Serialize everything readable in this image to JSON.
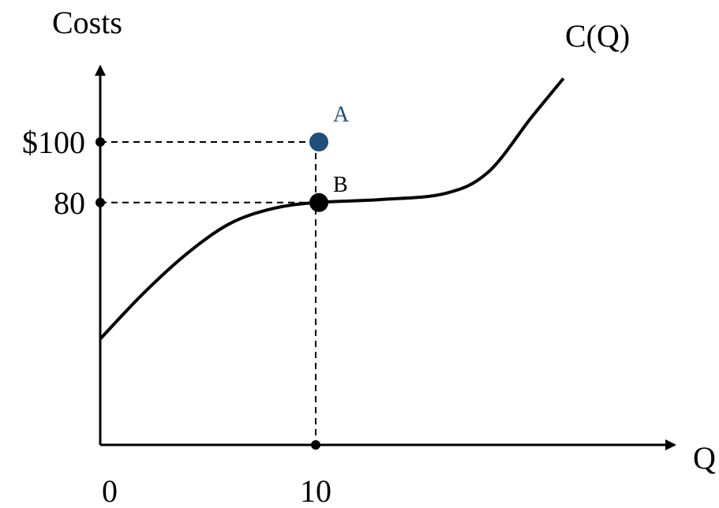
{
  "chart_data": {
    "type": "line",
    "ylabel": "Costs",
    "xlabel": "Q",
    "curve_label": "C(Q)",
    "x_ticks": [
      {
        "value": 0,
        "label": "0"
      },
      {
        "value": 10,
        "label": "10"
      }
    ],
    "y_ticks": [
      {
        "value": 100,
        "label": "$100"
      },
      {
        "value": 80,
        "label": "80"
      }
    ],
    "series": [
      {
        "name": "C(Q)",
        "x": [
          0,
          2,
          4,
          6,
          8,
          10,
          13,
          16,
          18,
          20,
          21.5
        ],
        "y": [
          35,
          50,
          63,
          73,
          78,
          80,
          81,
          83,
          90,
          108,
          121
        ]
      }
    ],
    "points": [
      {
        "label": "A",
        "x": 10,
        "y": 100,
        "color": "#1f4e79"
      },
      {
        "label": "B",
        "x": 10,
        "y": 80,
        "color": "#000000"
      }
    ],
    "xlim": [
      0,
      27.5
    ],
    "ylim": [
      0,
      130
    ],
    "grid": false
  }
}
